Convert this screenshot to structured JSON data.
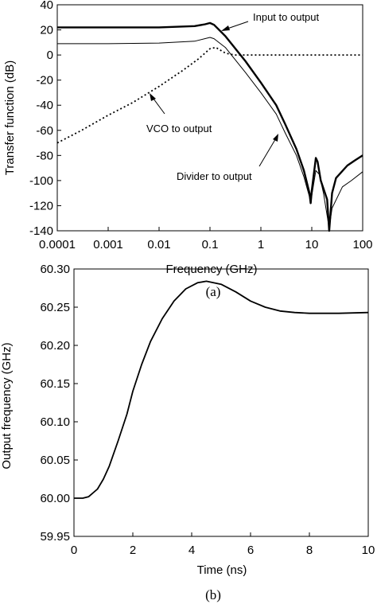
{
  "chart_data": [
    {
      "panel_label": "(a)",
      "type": "line",
      "xlabel": "Frequency (GHz)",
      "ylabel": "Transfer function (dB)",
      "xscale": "log",
      "xlim": [
        0.0001,
        100
      ],
      "ylim": [
        -140,
        40
      ],
      "x_ticks": [
        "0.0001",
        "0.001",
        "0.01",
        "0.1",
        "1",
        "10",
        "100"
      ],
      "y_ticks": [
        "40",
        "20",
        "0",
        "-20",
        "-40",
        "-60",
        "-80",
        "-100",
        "-120",
        "-140"
      ],
      "grid": false,
      "series": [
        {
          "name": "Input to output",
          "style": "solid-thick",
          "points": [
            [
              0.0001,
              22
            ],
            [
              0.001,
              22
            ],
            [
              0.01,
              22
            ],
            [
              0.05,
              23
            ],
            [
              0.08,
              24.5
            ],
            [
              0.1,
              25.5
            ],
            [
              0.12,
              24
            ],
            [
              0.2,
              15
            ],
            [
              0.5,
              -5
            ],
            [
              1,
              -22
            ],
            [
              2,
              -40
            ],
            [
              3,
              -55
            ],
            [
              5,
              -75
            ],
            [
              7,
              -92
            ],
            [
              9,
              -110
            ],
            [
              9.5,
              -118
            ],
            [
              10,
              -108
            ],
            [
              12,
              -82
            ],
            [
              13,
              -85
            ],
            [
              15,
              -100
            ],
            [
              20,
              -115
            ],
            [
              22,
              -140
            ],
            [
              25,
              -110
            ],
            [
              30,
              -98
            ],
            [
              50,
              -88
            ],
            [
              70,
              -84
            ],
            [
              100,
              -80
            ]
          ]
        },
        {
          "name": "Divider to output",
          "style": "solid-thin",
          "points": [
            [
              0.0001,
              9
            ],
            [
              0.001,
              9
            ],
            [
              0.01,
              9.5
            ],
            [
              0.05,
              11
            ],
            [
              0.1,
              14
            ],
            [
              0.12,
              13
            ],
            [
              0.2,
              6
            ],
            [
              0.5,
              -14
            ],
            [
              1,
              -30
            ],
            [
              2,
              -47
            ],
            [
              3,
              -62
            ],
            [
              5,
              -80
            ],
            [
              7,
              -97
            ],
            [
              9,
              -113
            ],
            [
              9.5,
              -118
            ],
            [
              10,
              -112
            ],
            [
              12,
              -92
            ],
            [
              14,
              -95
            ],
            [
              17,
              -110
            ],
            [
              22,
              -138
            ],
            [
              25,
              -122
            ],
            [
              40,
              -105
            ],
            [
              60,
              -100
            ],
            [
              100,
              -93
            ]
          ]
        },
        {
          "name": "VCO to output",
          "style": "dotted",
          "points": [
            [
              0.0001,
              -70
            ],
            [
              0.0003,
              -60
            ],
            [
              0.001,
              -48
            ],
            [
              0.003,
              -38
            ],
            [
              0.01,
              -25
            ],
            [
              0.03,
              -12
            ],
            [
              0.06,
              -3
            ],
            [
              0.1,
              5
            ],
            [
              0.13,
              6
            ],
            [
              0.2,
              1.5
            ],
            [
              0.3,
              0
            ],
            [
              1,
              0
            ],
            [
              10,
              0
            ],
            [
              100,
              0
            ]
          ]
        }
      ],
      "annotations": [
        "Input to output",
        "VCO to output",
        "Divider to output"
      ]
    },
    {
      "panel_label": "(b)",
      "type": "line",
      "xlabel": "Time (ns)",
      "ylabel": "Output frequency (GHz)",
      "xlim": [
        0,
        10
      ],
      "ylim": [
        59.95,
        60.3
      ],
      "x_ticks": [
        "0",
        "2",
        "4",
        "6",
        "8",
        "10"
      ],
      "y_ticks": [
        "60.30",
        "60.25",
        "60.20",
        "60.15",
        "60.10",
        "60.05",
        "60.00",
        "59.95"
      ],
      "grid": false,
      "series": [
        {
          "points": [
            [
              0,
              60.0
            ],
            [
              0.3,
              60.0
            ],
            [
              0.5,
              60.002
            ],
            [
              0.8,
              60.012
            ],
            [
              1.0,
              60.025
            ],
            [
              1.2,
              60.042
            ],
            [
              1.5,
              60.075
            ],
            [
              1.8,
              60.11
            ],
            [
              2.0,
              60.14
            ],
            [
              2.3,
              60.175
            ],
            [
              2.6,
              60.205
            ],
            [
              3.0,
              60.235
            ],
            [
              3.4,
              60.258
            ],
            [
              3.8,
              60.274
            ],
            [
              4.2,
              60.282
            ],
            [
              4.5,
              60.284
            ],
            [
              5.0,
              60.28
            ],
            [
              5.5,
              60.27
            ],
            [
              6.0,
              60.258
            ],
            [
              6.5,
              60.25
            ],
            [
              7.0,
              60.245
            ],
            [
              7.5,
              60.243
            ],
            [
              8.0,
              60.242
            ],
            [
              8.5,
              60.242
            ],
            [
              9.0,
              60.242
            ],
            [
              10.0,
              60.243
            ]
          ]
        }
      ]
    }
  ]
}
